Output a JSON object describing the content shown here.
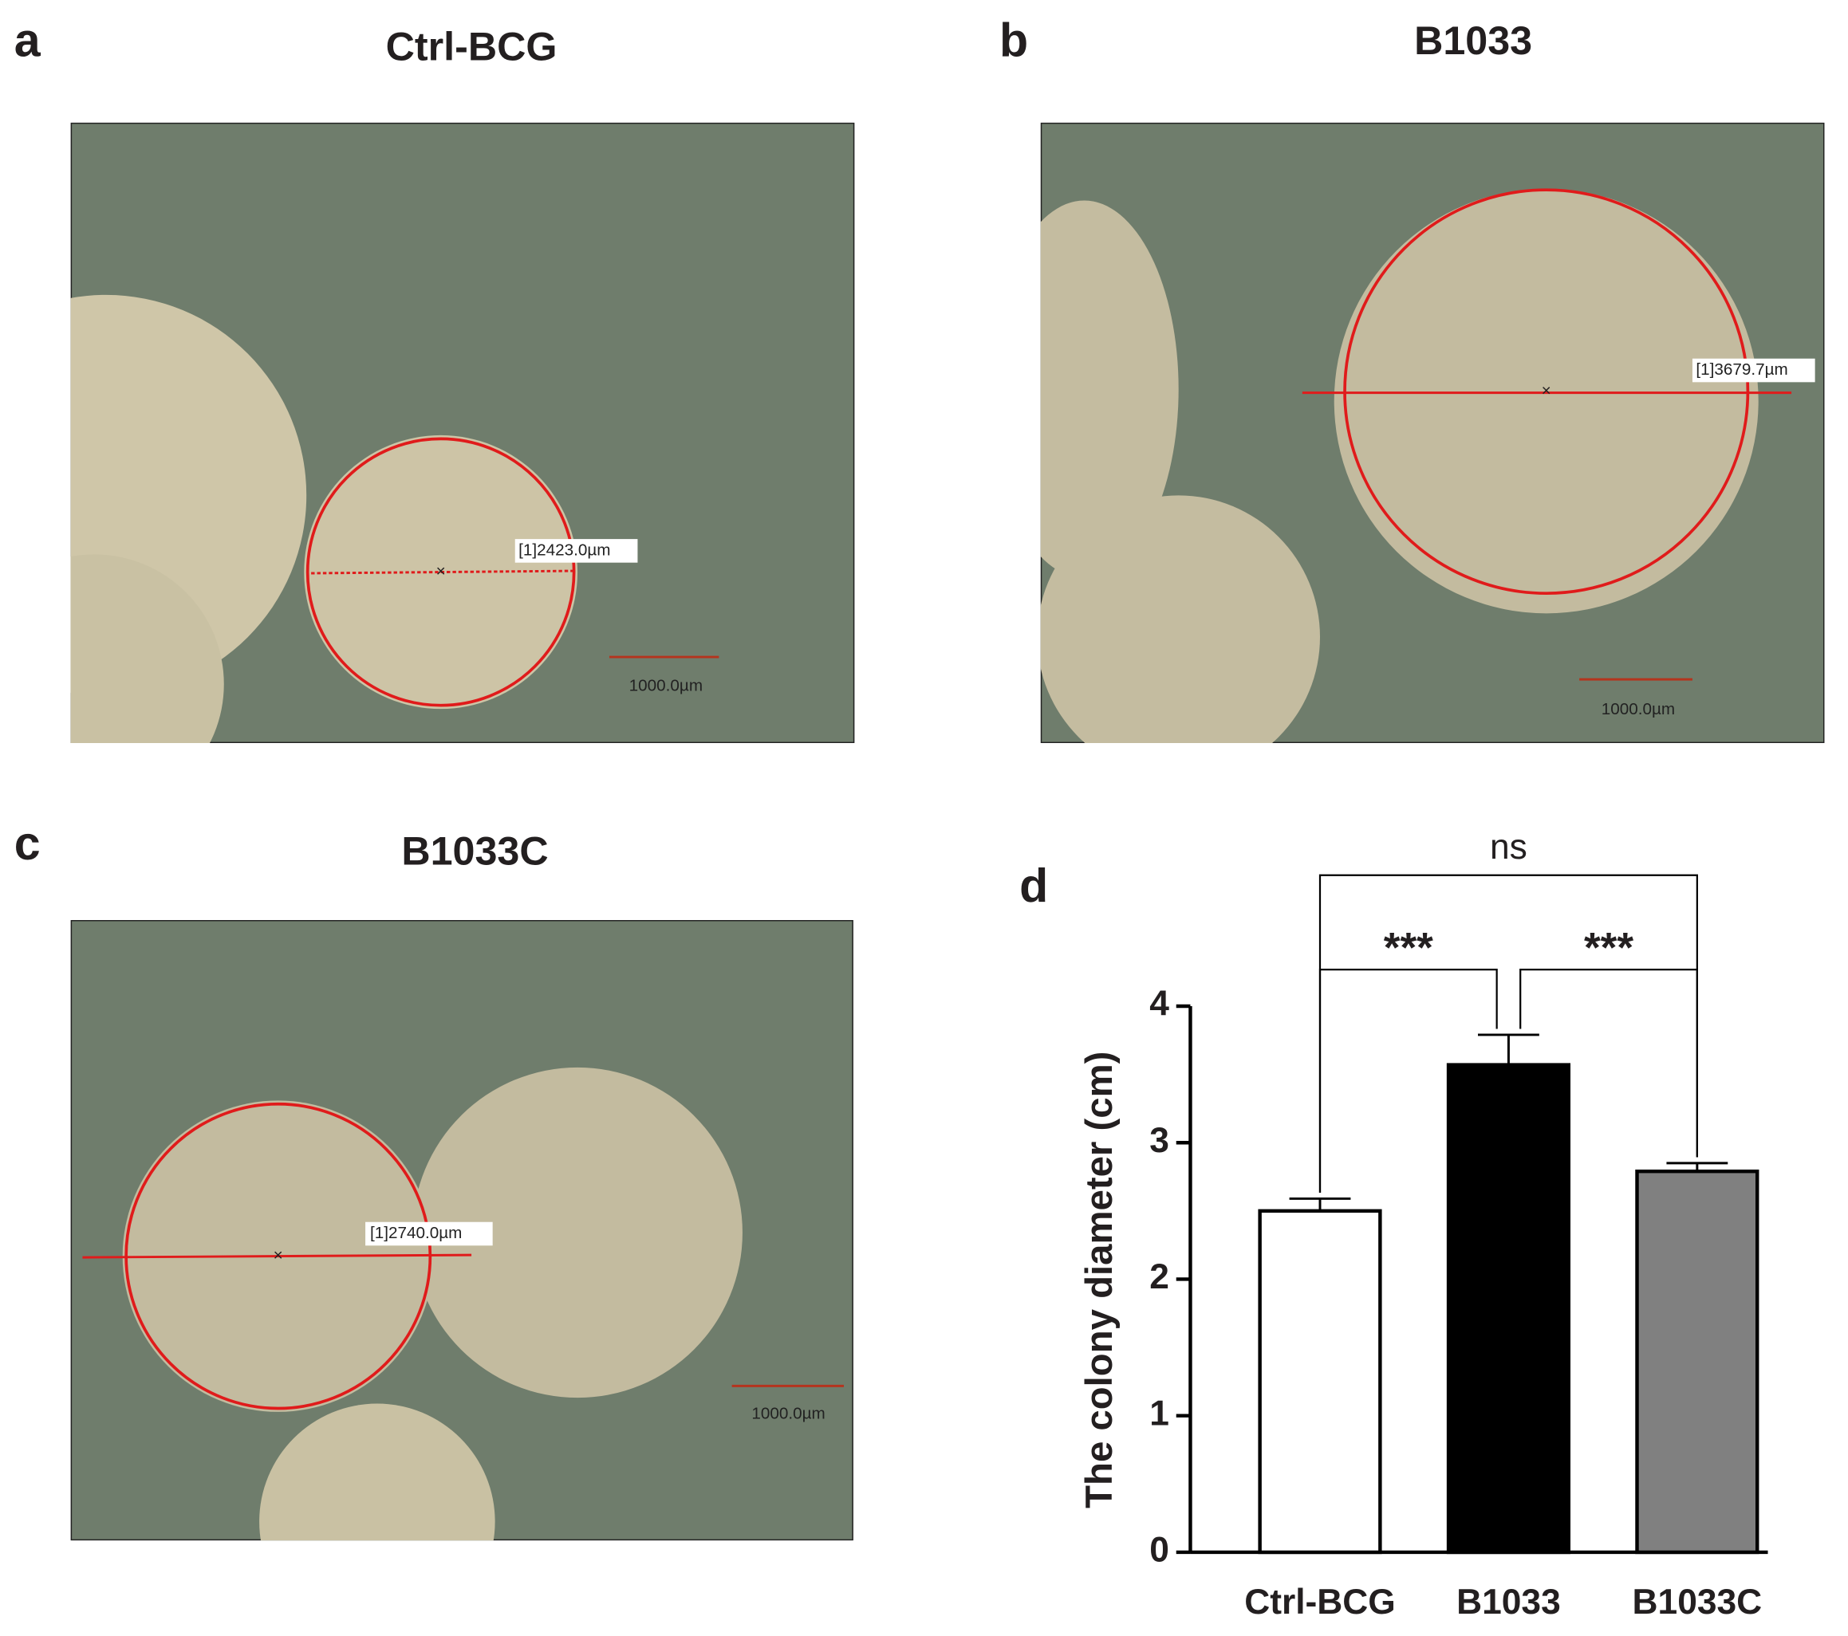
{
  "panels": [
    {
      "label": "a",
      "title": "Ctrl-BCG",
      "measurement": "[1]2423.0µm",
      "scale_bar": "1000.0µm"
    },
    {
      "label": "b",
      "title": "B1033",
      "measurement": "[1]3679.7µm",
      "scale_bar": "1000.0µm"
    },
    {
      "label": "c",
      "title": "B1033C",
      "measurement": "[1]2740.0µm",
      "scale_bar": "1000.0µm"
    }
  ],
  "chart_data": {
    "type": "bar",
    "panel_label": "d",
    "y_label": "The colony diameter (cm)",
    "categories": [
      "Ctrl-BCG",
      "B1033",
      "B1033C"
    ],
    "values": [
      2.5,
      3.57,
      2.79
    ],
    "errors": [
      0.09,
      0.22,
      0.06
    ],
    "colors": [
      "#ffffff",
      "#000000",
      "#808080"
    ],
    "ylim": [
      0,
      4
    ],
    "yticks": [
      0,
      1,
      2,
      3,
      4
    ],
    "annotations": [
      {
        "text": "***",
        "between": [
          0,
          1
        ]
      },
      {
        "text": "***",
        "between": [
          1,
          2
        ]
      },
      {
        "text": "ns",
        "between": [
          0,
          2
        ]
      }
    ]
  }
}
